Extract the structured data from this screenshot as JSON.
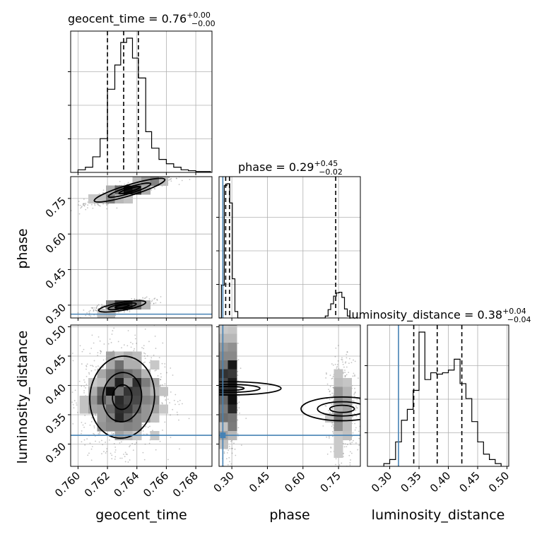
{
  "chart_data": {
    "type": "corner",
    "parameters": [
      "geocent_time",
      "phase",
      "luminosity_distance"
    ],
    "axis_labels": [
      "geocent_time",
      "phase",
      "luminosity_distance"
    ],
    "ranges": {
      "geocent_time": [
        0.7595,
        0.7691
      ],
      "phase": [
        0.246,
        0.842
      ],
      "luminosity_distance": [
        0.262,
        0.503
      ]
    },
    "ticks": {
      "geocent_time": [
        "0.760",
        "0.762",
        "0.764",
        "0.766",
        "0.768"
      ],
      "phase": [
        "0.30",
        "0.45",
        "0.60",
        "0.75"
      ],
      "luminosity_distance": [
        "0.30",
        "0.35",
        "0.40",
        "0.45",
        "0.50"
      ]
    },
    "truths": {
      "phase": 0.262,
      "luminosity_distance": 0.315
    },
    "titles": [
      {
        "param": "geocent_time",
        "text": "geocent_time = 0.76",
        "plus": "+0.00",
        "minus": "−0.00"
      },
      {
        "param": "phase",
        "text": "phase = 0.29",
        "plus": "+0.45",
        "minus": "−0.02"
      },
      {
        "param": "luminosity_distance",
        "text": "luminosity_distance = 0.38",
        "plus": "+0.04",
        "minus": "−0.04"
      }
    ],
    "quantiles": {
      "geocent_time": [
        0.762,
        0.7631,
        0.7641
      ],
      "phase": [
        0.274,
        0.29,
        0.738
      ],
      "luminosity_distance": [
        0.341,
        0.381,
        0.423
      ]
    },
    "histograms": {
      "geocent_time": {
        "edges": [
          0.76,
          0.7605,
          0.761,
          0.7615,
          0.762,
          0.7625,
          0.7629,
          0.7633,
          0.7637,
          0.7641,
          0.7646,
          0.765,
          0.7655,
          0.766,
          0.7665,
          0.767,
          0.7675,
          0.768,
          0.7685,
          0.769
        ],
        "counts": [
          3,
          6,
          18,
          39,
          96,
          124,
          150,
          155,
          132,
          109,
          47,
          28,
          15,
          10,
          6,
          3,
          2,
          1,
          1
        ]
      },
      "phase": {
        "edges": [
          0.246,
          0.256,
          0.268,
          0.279,
          0.291,
          0.302,
          0.313,
          0.325,
          0.336,
          0.694,
          0.706,
          0.717,
          0.729,
          0.741,
          0.752,
          0.764,
          0.775,
          0.787,
          0.798,
          0.81
        ],
        "counts": [
          0,
          51,
          206,
          209,
          179,
          61,
          10,
          0,
          0,
          3,
          13,
          22,
          34,
          39,
          40,
          32,
          14,
          3,
          0
        ]
      },
      "luminosity_distance": {
        "edges": [
          0.29,
          0.3,
          0.31,
          0.32,
          0.33,
          0.34,
          0.35,
          0.36,
          0.37,
          0.38,
          0.39,
          0.4,
          0.41,
          0.42,
          0.43,
          0.44,
          0.45,
          0.46,
          0.47,
          0.48,
          0.49
        ],
        "counts": [
          2,
          5,
          18,
          34,
          42,
          56,
          99,
          64,
          69,
          68,
          69,
          71,
          79,
          61,
          50,
          33,
          18,
          9,
          5,
          2
        ]
      }
    },
    "samples_2d": [
      {
        "x": "geocent_time",
        "y": "phase",
        "clusters": [
          {
            "cx": 0.7635,
            "cy": 0.785,
            "sx": 0.0012,
            "sy": 0.025,
            "rho": 0.88,
            "n": 700
          },
          {
            "cx": 0.763,
            "cy": 0.295,
            "sx": 0.0008,
            "sy": 0.012,
            "rho": 0.7,
            "n": 450
          }
        ]
      },
      {
        "x": "geocent_time",
        "y": "luminosity_distance",
        "clusters": [
          {
            "cx": 0.763,
            "cy": 0.38,
            "sx": 0.0011,
            "sy": 0.035,
            "rho": 0.05,
            "n": 1400
          }
        ]
      },
      {
        "x": "phase",
        "y": "luminosity_distance",
        "clusters": [
          {
            "cx": 0.285,
            "cy": 0.395,
            "sx": 0.014,
            "sy": 0.045,
            "rho": 0.0,
            "n": 900
          },
          {
            "cx": 0.765,
            "cy": 0.36,
            "sx": 0.025,
            "sy": 0.035,
            "rho": 0.0,
            "n": 450
          }
        ]
      }
    ],
    "grid": true,
    "colors": {
      "hist": "#000000",
      "truth": "#4682b4",
      "contour": "#000000",
      "samples": "#555555"
    }
  }
}
